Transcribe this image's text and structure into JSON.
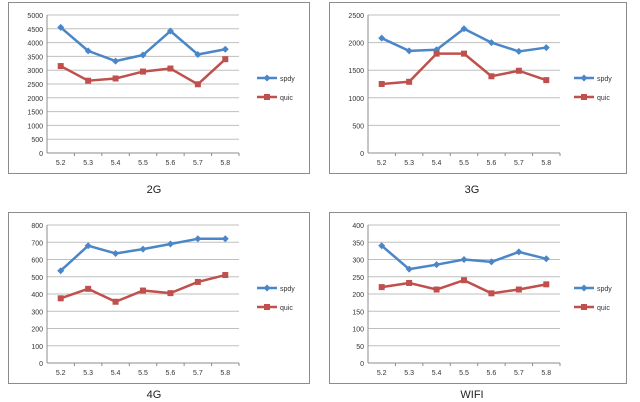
{
  "chart_data": [
    {
      "type": "line",
      "title": "2G",
      "categories": [
        "5.2",
        "5.3",
        "5.4",
        "5.5",
        "5.6",
        "5.7",
        "5.8"
      ],
      "ylim": [
        0,
        5000
      ],
      "yticks": [
        "0",
        "500",
        "1000",
        "1500",
        "2000",
        "2500",
        "3000",
        "3500",
        "4000",
        "4500",
        "5000"
      ],
      "grid": true,
      "legend": "right",
      "series": [
        {
          "name": "spdy",
          "color": "#4a86c8",
          "marker": "diamond",
          "values": [
            4550,
            3700,
            3330,
            3550,
            4420,
            3570,
            3760
          ]
        },
        {
          "name": "quic",
          "color": "#c0504d",
          "marker": "square",
          "values": [
            3150,
            2620,
            2700,
            2950,
            3060,
            2490,
            3400
          ]
        }
      ]
    },
    {
      "type": "line",
      "title": "3G",
      "categories": [
        "5.2",
        "5.3",
        "5.4",
        "5.5",
        "5.6",
        "5.7",
        "5.8"
      ],
      "ylim": [
        0,
        2500
      ],
      "yticks": [
        "0",
        "500",
        "1000",
        "1500",
        "2000",
        "2500"
      ],
      "grid": true,
      "legend": "right",
      "series": [
        {
          "name": "spdy",
          "color": "#4a86c8",
          "marker": "diamond",
          "values": [
            2080,
            1850,
            1870,
            2250,
            2000,
            1840,
            1910
          ]
        },
        {
          "name": "quic",
          "color": "#c0504d",
          "marker": "square",
          "values": [
            1250,
            1290,
            1800,
            1800,
            1390,
            1490,
            1320
          ]
        }
      ]
    },
    {
      "type": "line",
      "title": "4G",
      "categories": [
        "5.2",
        "5.3",
        "5.4",
        "5.5",
        "5.6",
        "5.7",
        "5.8"
      ],
      "ylim": [
        0,
        800
      ],
      "yticks": [
        "0",
        "100",
        "200",
        "300",
        "400",
        "500",
        "600",
        "700",
        "800"
      ],
      "grid": true,
      "legend": "right",
      "series": [
        {
          "name": "spdy",
          "color": "#4a86c8",
          "marker": "diamond",
          "values": [
            535,
            680,
            635,
            660,
            690,
            720,
            720
          ]
        },
        {
          "name": "quic",
          "color": "#c0504d",
          "marker": "square",
          "values": [
            375,
            430,
            355,
            420,
            405,
            470,
            510
          ]
        }
      ]
    },
    {
      "type": "line",
      "title": "WIFI",
      "categories": [
        "5.2",
        "5.3",
        "5.4",
        "5.5",
        "5.6",
        "5.7",
        "5.8"
      ],
      "ylim": [
        0,
        400
      ],
      "yticks": [
        "0",
        "50",
        "100",
        "150",
        "200",
        "250",
        "300",
        "350",
        "400"
      ],
      "grid": true,
      "legend": "right",
      "series": [
        {
          "name": "spdy",
          "color": "#4a86c8",
          "marker": "diamond",
          "values": [
            340,
            272,
            285,
            300,
            293,
            322,
            302
          ]
        },
        {
          "name": "quic",
          "color": "#c0504d",
          "marker": "square",
          "values": [
            220,
            232,
            213,
            240,
            202,
            213,
            228
          ]
        }
      ]
    }
  ]
}
